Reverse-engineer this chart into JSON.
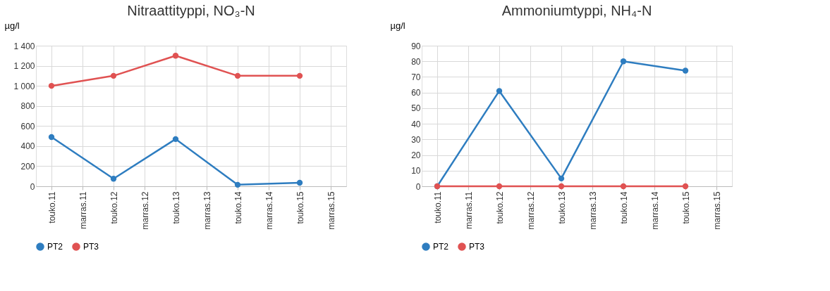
{
  "chart_data": [
    {
      "type": "line",
      "title": "Nitraattityppi, NO₃-N",
      "ylabel": "µg/l",
      "categories": [
        "touko.11",
        "marras.11",
        "touko.12",
        "marras.12",
        "touko.13",
        "marras.13",
        "touko.14",
        "marras.14",
        "touko.15",
        "marras.15"
      ],
      "series": [
        {
          "name": "PT2",
          "color": "#2e7dc0",
          "values": [
            490,
            null,
            75,
            null,
            470,
            null,
            15,
            null,
            35,
            null
          ]
        },
        {
          "name": "PT3",
          "color": "#e05252",
          "values": [
            1000,
            null,
            1100,
            null,
            1300,
            null,
            1100,
            null,
            1100,
            null
          ]
        }
      ],
      "ylim": [
        0,
        1400
      ],
      "yticks": [
        0,
        200,
        400,
        600,
        800,
        {
          "value": 1000,
          "label": "1 000"
        },
        {
          "value": 1200,
          "label": "1 200"
        },
        {
          "value": 1400,
          "label": "1 400"
        }
      ],
      "grid": true,
      "legend": "bottom",
      "marker": "circle",
      "line_style": "solid"
    },
    {
      "type": "line",
      "title": "Ammoniumtyppi, NH₄-N",
      "ylabel": "µg/l",
      "categories": [
        "touko.11",
        "marras.11",
        "touko.12",
        "marras.12",
        "touko.13",
        "marras.13",
        "touko.14",
        "marras.14",
        "touko.15",
        "marras.15"
      ],
      "series": [
        {
          "name": "PT2",
          "color": "#2e7dc0",
          "values": [
            0,
            null,
            61,
            null,
            5,
            null,
            80,
            null,
            74,
            null
          ]
        },
        {
          "name": "PT3",
          "color": "#e05252",
          "values": [
            0,
            null,
            0,
            null,
            0,
            null,
            0,
            null,
            0,
            null
          ]
        }
      ],
      "ylim": [
        0,
        90
      ],
      "yticks": [
        0,
        10,
        20,
        30,
        40,
        50,
        60,
        70,
        80,
        90
      ],
      "grid": true,
      "legend": "bottom",
      "marker": "circle",
      "line_style": "solid"
    }
  ]
}
